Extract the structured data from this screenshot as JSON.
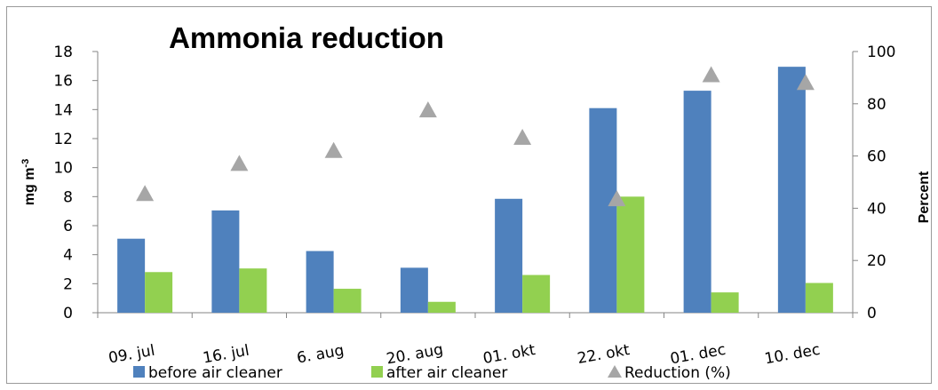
{
  "chart_data": {
    "type": "bar",
    "title": "Ammonia reduction",
    "ylabel": "mg m",
    "ylabel_superscript": "-3",
    "y2label": "Percent",
    "categories": [
      "09. jul",
      "16. jul",
      "6. aug",
      "20. aug",
      "01. okt",
      "22. okt",
      "01. dec",
      "10. dec"
    ],
    "ylim": [
      0,
      18
    ],
    "yticks": [
      "0",
      "2",
      "4",
      "6",
      "8",
      "10",
      "12",
      "14",
      "16",
      "18"
    ],
    "y2lim": [
      0,
      100
    ],
    "y2ticks": [
      "0",
      "20",
      "40",
      "60",
      "80",
      "100"
    ],
    "series": [
      {
        "name": "before air cleaner",
        "type": "bar",
        "axis": "left",
        "color": "#4f81bd",
        "values": [
          5.1,
          7.05,
          4.25,
          3.1,
          7.85,
          14.1,
          15.3,
          16.95
        ]
      },
      {
        "name": "after air cleaner",
        "type": "bar",
        "axis": "left",
        "color": "#92d050",
        "values": [
          2.8,
          3.05,
          1.65,
          0.75,
          2.6,
          8.0,
          1.4,
          2.05
        ]
      },
      {
        "name": "Reduction (%)",
        "type": "scatter",
        "axis": "right",
        "marker": "triangle",
        "color": "#a6a6a6",
        "values": [
          45.5,
          57,
          62,
          77.5,
          67,
          43.5,
          91,
          88
        ]
      }
    ],
    "grid": false,
    "legend_position": "bottom"
  }
}
